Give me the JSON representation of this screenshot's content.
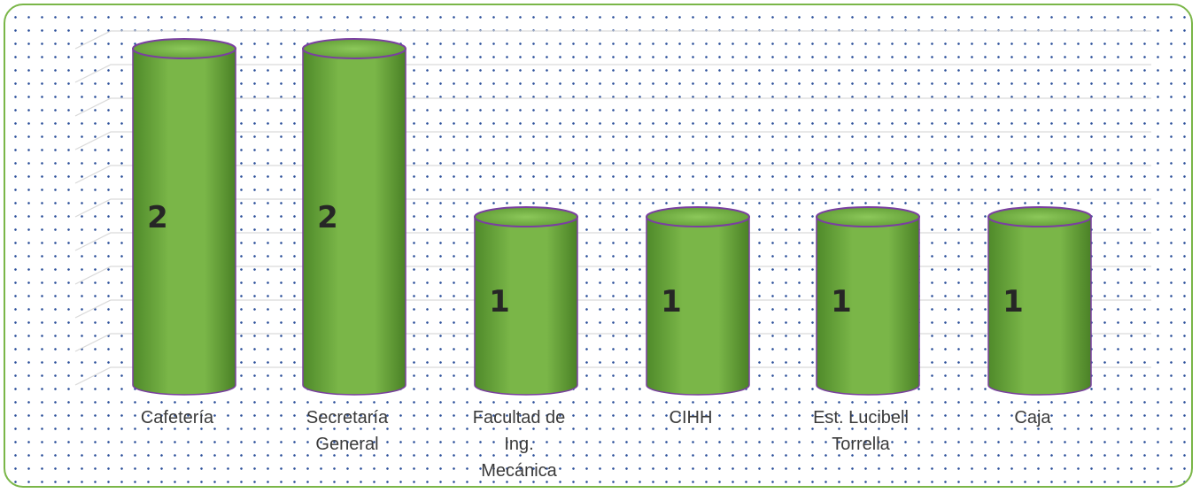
{
  "chart_data": {
    "type": "bar",
    "title": "",
    "xlabel": "",
    "ylabel": "",
    "categories": [
      [
        "Cafetería"
      ],
      [
        "Secretaría",
        "General"
      ],
      [
        "Facultad de",
        "Ing.",
        "Mecánica"
      ],
      [
        "CIHH"
      ],
      [
        "Est. Lucibell",
        "Torrella"
      ],
      [
        "Caja"
      ]
    ],
    "values": [
      2,
      2,
      1,
      1,
      1,
      1
    ],
    "data_labels": [
      "2",
      "2",
      "1",
      "1",
      "1",
      "1"
    ],
    "ylim": [
      0,
      2
    ],
    "grid": true,
    "legend": "none",
    "colors": {
      "bar_fill": "#7ab648",
      "bar_outline": "#7a3fa0",
      "grid": "#d9d9d9",
      "border": "#7ab648",
      "dots": "#2b4f9a"
    }
  }
}
